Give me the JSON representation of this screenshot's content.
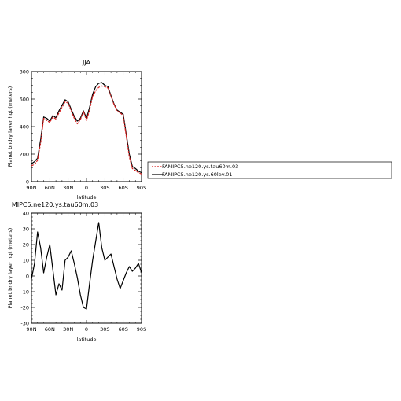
{
  "chart_data": [
    {
      "type": "line",
      "title": "JJA",
      "xlabel": "latitude",
      "ylabel": "Planet bndry layer hgt (meters)",
      "x_tick_labels": [
        "90N",
        "60N",
        "30N",
        "0",
        "30S",
        "60S",
        "90S"
      ],
      "x_ticks": [
        90,
        60,
        30,
        0,
        -30,
        -60,
        -90
      ],
      "xlim": [
        90,
        -90
      ],
      "ylim": [
        0,
        800
      ],
      "y_ticks": [
        0,
        200,
        400,
        600,
        800
      ],
      "y_tick_labels": [
        "0",
        "200",
        "400",
        "600",
        "800"
      ],
      "legend_position": "right-outside",
      "x": [
        90,
        85,
        80,
        75,
        70,
        65,
        60,
        55,
        50,
        45,
        40,
        35,
        30,
        25,
        20,
        15,
        10,
        5,
        0,
        -5,
        -10,
        -15,
        -20,
        -25,
        -30,
        -35,
        -40,
        -45,
        -50,
        -55,
        -60,
        -65,
        -70,
        -75,
        -80,
        -85,
        -90
      ],
      "series": [
        {
          "name": "FAMIPC5.ne120.ys.tau60m.03",
          "color": "#d62020",
          "values": [
            115,
            125,
            155,
            280,
            460,
            445,
            430,
            470,
            455,
            500,
            540,
            580,
            570,
            515,
            460,
            420,
            450,
            510,
            445,
            520,
            620,
            660,
            685,
            695,
            690,
            680,
            620,
            560,
            515,
            500,
            480,
            330,
            180,
            95,
            80,
            65,
            55
          ]
        },
        {
          "name": "FAMIPC5.ne120.ys.60lev.01",
          "color": "#000000",
          "values": [
            130,
            145,
            170,
            305,
            470,
            460,
            440,
            480,
            465,
            515,
            555,
            595,
            580,
            525,
            475,
            440,
            460,
            515,
            460,
            540,
            635,
            690,
            715,
            720,
            700,
            690,
            625,
            565,
            520,
            505,
            490,
            345,
            200,
            110,
            95,
            75,
            65
          ]
        }
      ]
    },
    {
      "type": "line",
      "title": "MIPC5.ne120.ys.tau60m.03",
      "xlabel": "latitude",
      "ylabel": "Planet bndry layer hgt (meters)",
      "x_tick_labels": [
        "90N",
        "60N",
        "30N",
        "0",
        "30S",
        "60S",
        "90S"
      ],
      "x_ticks": [
        90,
        60,
        30,
        0,
        -30,
        -60,
        -90
      ],
      "xlim": [
        90,
        -90
      ],
      "ylim": [
        -30,
        40
      ],
      "y_ticks": [
        -30,
        -20,
        -10,
        0,
        10,
        20,
        30,
        40
      ],
      "y_tick_labels": [
        "-30",
        "-20",
        "-10",
        "0",
        "10",
        "20",
        "30",
        "40"
      ],
      "x": [
        90,
        85,
        80,
        75,
        70,
        65,
        60,
        55,
        50,
        45,
        40,
        35,
        30,
        25,
        20,
        15,
        10,
        5,
        0,
        -5,
        -10,
        -15,
        -20,
        -25,
        -30,
        -35,
        -40,
        -45,
        -50,
        -55,
        -60,
        -65,
        -70,
        -75,
        -80,
        -85,
        -90
      ],
      "series": [
        {
          "name": "",
          "color": "#000000",
          "values": [
            -2,
            8,
            28,
            18,
            2,
            12,
            20,
            4,
            -12,
            -5,
            -9,
            10,
            12,
            16,
            8,
            -1,
            -12,
            -20,
            -21,
            -5,
            10,
            22,
            34,
            18,
            10,
            12,
            14,
            6,
            -2,
            -8,
            -3,
            2,
            6,
            3,
            5,
            8,
            2
          ]
        }
      ]
    }
  ]
}
